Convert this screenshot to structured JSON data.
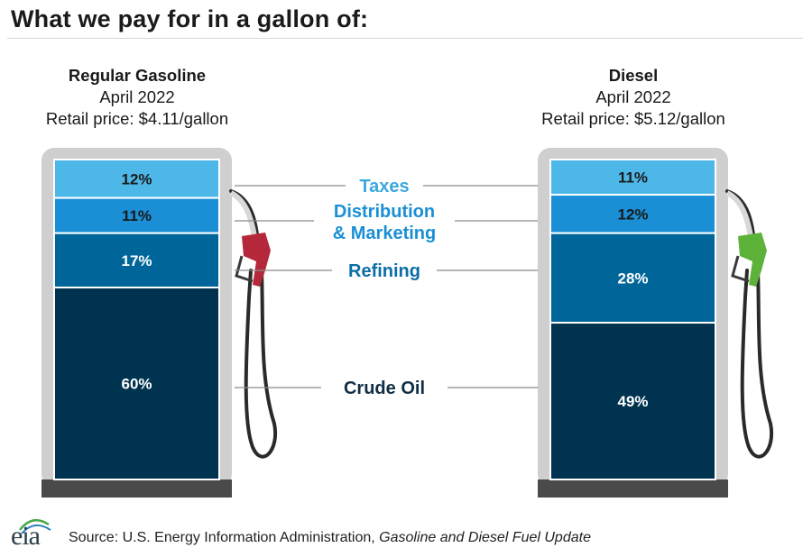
{
  "title": "What we pay for in a gallon of:",
  "source": {
    "prefix": "Source: U.S. Energy Information Administration, ",
    "publication": "Gasoline and Diesel Fuel Update"
  },
  "logo_text": "eia",
  "colors": {
    "taxes": "#4db8e8",
    "distribution": "#1a8fd6",
    "refining": "#006699",
    "crude": "#003350",
    "label_text": "#1a1a1a",
    "taxes_label": "#3aa8dc",
    "distribution_label": "#1a8fd6",
    "refining_label": "#0b6ea6",
    "crude_label": "#0f2e45",
    "pump_body": "#cfcfcf",
    "pump_base": "#4a4a4a",
    "gas_nozzle": "#b5273a",
    "diesel_nozzle": "#5db33a"
  },
  "chart_data": {
    "type": "bar",
    "stacked": true,
    "orientation": "vertical",
    "components": [
      "Crude Oil",
      "Refining",
      "Distribution\n& Marketing",
      "Taxes"
    ],
    "component_keys": [
      "crude",
      "refining",
      "distribution",
      "taxes"
    ],
    "products": [
      {
        "name": "Regular Gasoline",
        "period": "April 2022",
        "price_label": "Retail price: $4.11/gallon",
        "nozzle": "gas_nozzle",
        "shares": {
          "crude": 60,
          "refining": 17,
          "distribution": 11,
          "taxes": 12
        },
        "share_labels": {
          "crude": "60%",
          "refining": "17%",
          "distribution": "11%",
          "taxes": "12%"
        }
      },
      {
        "name": "Diesel",
        "period": "April 2022",
        "price_label": "Retail price: $5.12/gallon",
        "nozzle": "diesel_nozzle",
        "shares": {
          "crude": 49,
          "refining": 28,
          "distribution": 12,
          "taxes": 11
        },
        "share_labels": {
          "crude": "49%",
          "refining": "28%",
          "distribution": "12%",
          "taxes": "11%"
        }
      }
    ],
    "unit": "%"
  }
}
